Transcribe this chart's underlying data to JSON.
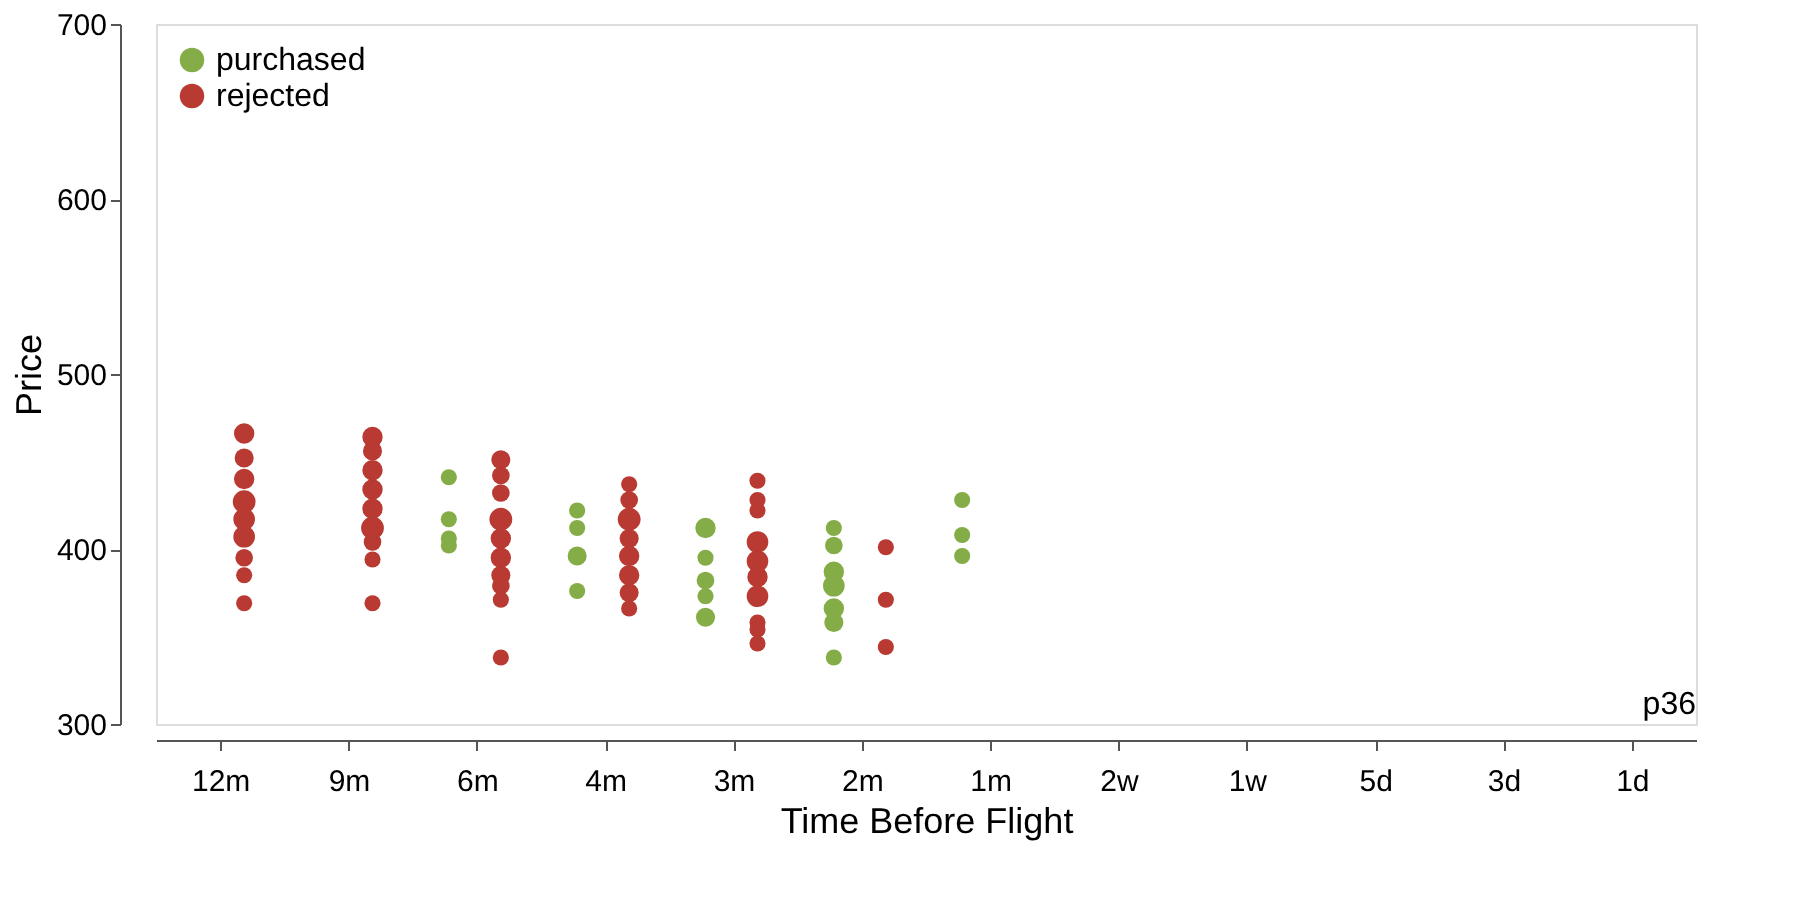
{
  "chart_data": {
    "type": "bubble",
    "xlabel": "Time Before Flight",
    "ylabel": "Price",
    "categories": [
      "12m",
      "9m",
      "6m",
      "4m",
      "3m",
      "2m",
      "1m",
      "2w",
      "1w",
      "5d",
      "3d",
      "1d"
    ],
    "ylim": [
      300,
      700
    ],
    "yticks": [
      300,
      400,
      500,
      600,
      700
    ],
    "grid": false,
    "legend": "top left",
    "marker": "circle",
    "annotations": [
      "p36"
    ],
    "series": [
      {
        "name": "purchased",
        "color": "#84ad47",
        "x": [
          "6m",
          "6m",
          "6m",
          "6m",
          "4m",
          "4m",
          "4m",
          "4m",
          "3m",
          "3m",
          "3m",
          "3m",
          "3m",
          "2m",
          "2m",
          "2m",
          "2m",
          "2m",
          "2m",
          "2m",
          "1m",
          "1m",
          "1m"
        ],
        "values": [
          441,
          417,
          406,
          402,
          422,
          412,
          396,
          376,
          412,
          395,
          382,
          373,
          361,
          412,
          402,
          387,
          379,
          366,
          358,
          338,
          428,
          408,
          396
        ],
        "sizes": [
          0.5,
          0.5,
          0.5,
          0.5,
          0.5,
          0.5,
          0.7,
          0.5,
          0.8,
          0.5,
          0.6,
          0.5,
          0.7,
          0.5,
          0.6,
          0.8,
          0.9,
          0.8,
          0.7,
          0.5,
          0.5,
          0.5,
          0.5
        ]
      },
      {
        "name": "rejected",
        "color": "#b93a32",
        "x": [
          "12m",
          "12m",
          "12m",
          "12m",
          "12m",
          "12m",
          "12m",
          "12m",
          "12m",
          "9m",
          "9m",
          "9m",
          "9m",
          "9m",
          "9m",
          "9m",
          "9m",
          "9m",
          "6m",
          "6m",
          "6m",
          "6m",
          "6m",
          "6m",
          "6m",
          "6m",
          "6m",
          "6m",
          "4m",
          "4m",
          "4m",
          "4m",
          "4m",
          "4m",
          "4m",
          "4m",
          "3m",
          "3m",
          "3m",
          "3m",
          "3m",
          "3m",
          "3m",
          "3m",
          "3m",
          "3m",
          "2m",
          "2m",
          "2m"
        ],
        "values": [
          466,
          452,
          440,
          427,
          417,
          407,
          395,
          385,
          369,
          464,
          456,
          445,
          434,
          423,
          412,
          404,
          394,
          369,
          451,
          442,
          432,
          417,
          406,
          395,
          385,
          379,
          371,
          338,
          437,
          428,
          417,
          406,
          396,
          385,
          375,
          366,
          439,
          428,
          422,
          404,
          393,
          384,
          373,
          358,
          354,
          346,
          401,
          371,
          344
        ],
        "sizes": [
          0.8,
          0.7,
          0.8,
          1,
          0.9,
          0.9,
          0.6,
          0.5,
          0.5,
          0.8,
          0.7,
          0.8,
          0.8,
          0.8,
          1,
          0.6,
          0.5,
          0.5,
          0.7,
          0.6,
          0.6,
          1,
          0.8,
          0.8,
          0.7,
          0.6,
          0.5,
          0.5,
          0.5,
          0.6,
          1,
          0.7,
          0.8,
          0.8,
          0.7,
          0.5,
          0.5,
          0.5,
          0.5,
          0.9,
          0.9,
          0.8,
          0.9,
          0.5,
          0.5,
          0.5,
          0.5,
          0.5,
          0.5
        ]
      }
    ]
  }
}
